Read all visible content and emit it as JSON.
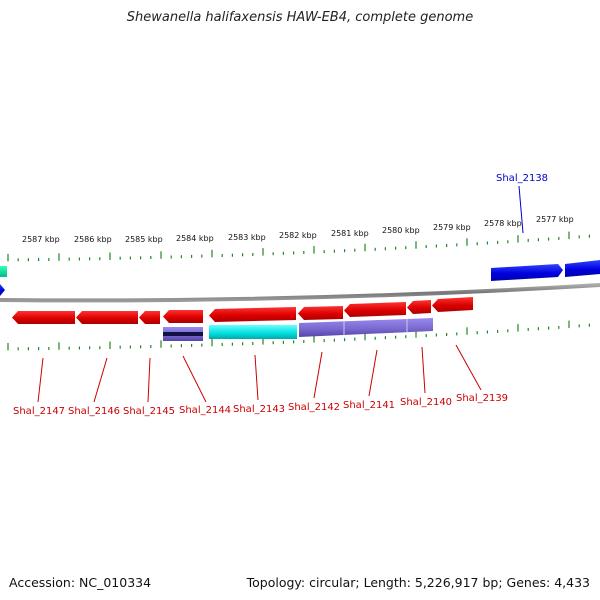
{
  "title": "Shewanella halifaxensis HAW-EB4, complete genome",
  "accession": "Accession: NC_010334",
  "summary": "Topology: circular; Length: 5,226,917 bp; Genes: 4,433",
  "scale_labels": [
    "2587 kbp",
    "2586 kbp",
    "2585 kbp",
    "2584 kbp",
    "2583 kbp",
    "2582 kbp",
    "2581 kbp",
    "2580 kbp",
    "2579 kbp",
    "2578 kbp",
    "2577 kbp"
  ],
  "genes_minus_strand": [
    "Shal_2147",
    "Shal_2146",
    "Shal_2145",
    "Shal_2144",
    "Shal_2143",
    "Shal_2142",
    "Shal_2141",
    "Shal_2140",
    "Shal_2139"
  ],
  "genes_plus_strand": [
    "Shal_2138"
  ],
  "colors": {
    "minus_gene": "#dd0000",
    "plus_gene": "#0000cc",
    "backbone": "#888888",
    "tick": "#228822",
    "cyan_feature": "#00dddd",
    "purple_feature": "#7766cc"
  }
}
